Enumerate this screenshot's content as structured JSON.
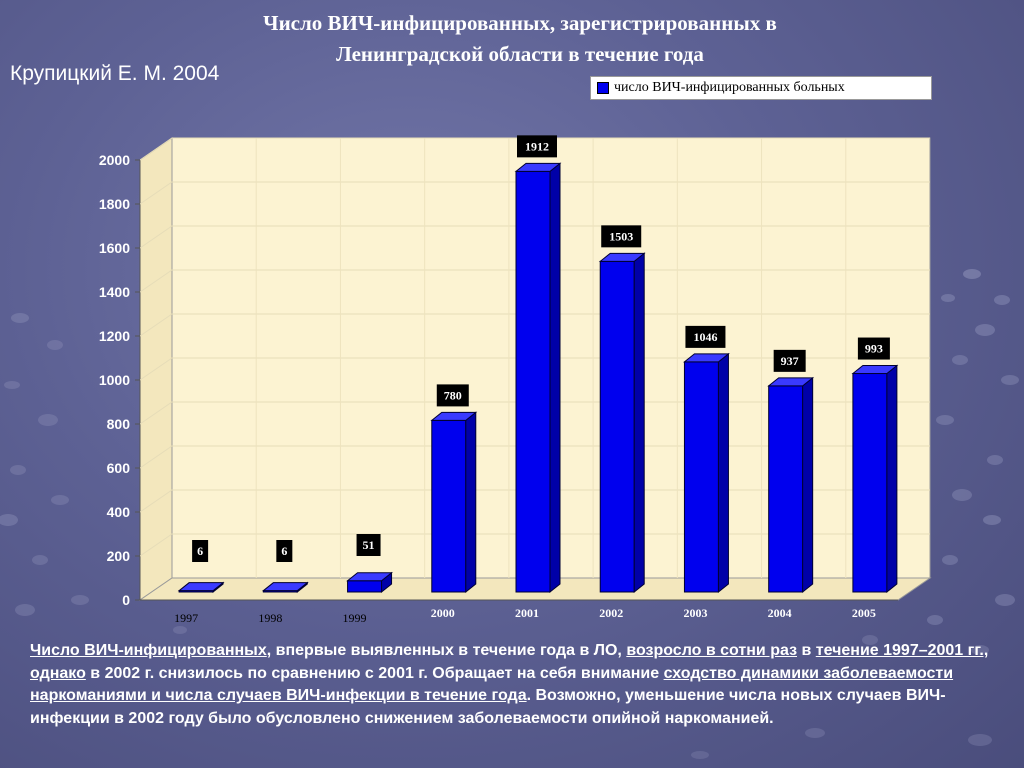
{
  "title_line1": "Число ВИЧ-инфицированных, зарегистрированных в",
  "title_line2": "Ленинградской области в течение года",
  "author": "Крупицкий Е. М. 2004",
  "colors": {
    "bar": "#0000ee",
    "plot_bg": "#fcf3d2",
    "background": "#5d6194"
  },
  "chart_data": {
    "type": "bar",
    "categories": [
      "1997",
      "1998",
      "1999",
      "2000",
      "2001",
      "2002",
      "2003",
      "2004",
      "2005"
    ],
    "series": [
      {
        "name": "число ВИЧ-инфицированных больных",
        "values": [
          6,
          6,
          51,
          780,
          1912,
          1503,
          1046,
          937,
          993
        ]
      }
    ],
    "data_labels": [
      "6",
      "6",
      "51",
      "780",
      "1912",
      "1503",
      "1046",
      "937",
      "993"
    ],
    "ylim": [
      0,
      2000
    ],
    "yticks": [
      "0",
      "200",
      "400",
      "600",
      "800",
      "1000",
      "1200",
      "1400",
      "1600",
      "1800",
      "2000"
    ],
    "legend_position": "top-right",
    "grid": true,
    "style": "3d-column"
  },
  "caption": {
    "p1": "Число ВИЧ-инфицированных",
    "p2": ", впервые выявленных  в течение года в  ЛО, ",
    "p3": "возросло в сотни  раз",
    "p4": " в ",
    "p5": "течение 1997–2001 гг., однако",
    "p6": " в 2002 г.  снизилось по сравнению с 2001 г. Обращает на себя внимание ",
    "p7": "сходство динамики заболеваемости наркоманиями  и числа  случаев ВИЧ-инфекции в течение года",
    "p8": ".  Возможно, уменьшение числа новых  случаев ВИЧ-инфекции в 2002 году было обусловлено снижением заболеваемости опийной наркоманией."
  }
}
